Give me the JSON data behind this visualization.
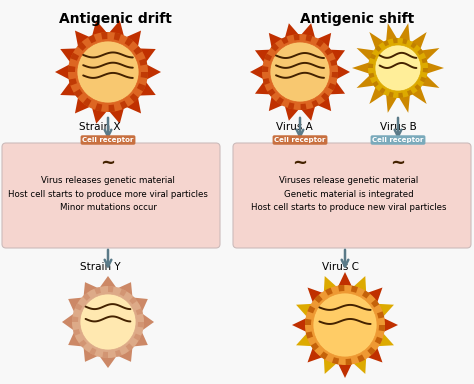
{
  "title_left": "Antigenic drift",
  "title_right": "Antigenic shift",
  "bg_color": "#f8f8f8",
  "box_color": "#f5d5cf",
  "box_edge_color": "#ccbbbb",
  "left_text": "Virus releases genetic material\nHost cell starts to produce more viral particles\nMinor mutations occur",
  "right_text": "Viruses release genetic material\nGenetic material is integrated\nHost cell starts to produce new viral particles",
  "label_strain_x": "Strain X",
  "label_strain_y": "Strain Y",
  "label_virus_a": "Virus A",
  "label_virus_b": "Virus B",
  "label_virus_c": "Virus C",
  "cell_receptor_color_left": "#c87040",
  "cell_receptor_color_right_a": "#c87040",
  "cell_receptor_color_right_b": "#7aaabb",
  "arrow_color": "#5a7a88",
  "tilde_color": "#442200",
  "virus_red_spike": "#c03000",
  "virus_red_ring_dark": "#bb3300",
  "virus_red_ring_light": "#dd6622",
  "virus_red_center": "#f8c870",
  "virus_orange_spike": "#cc8800",
  "virus_orange_ring_dark": "#bb7700",
  "virus_orange_ring_light": "#ddaa00",
  "virus_orange_center": "#ffee99",
  "virus_y_spike": "#cc8866",
  "virus_y_ring_dark": "#bb7755",
  "virus_y_ring_light": "#ddaa88",
  "virus_y_center": "#ffe8b0",
  "virus_c_spike_red": "#c03000",
  "virus_c_spike_yellow": "#ddaa00",
  "virus_c_ring_dark": "#bb5500",
  "virus_c_ring_light": "#ee9933",
  "virus_c_center": "#ffcc66"
}
